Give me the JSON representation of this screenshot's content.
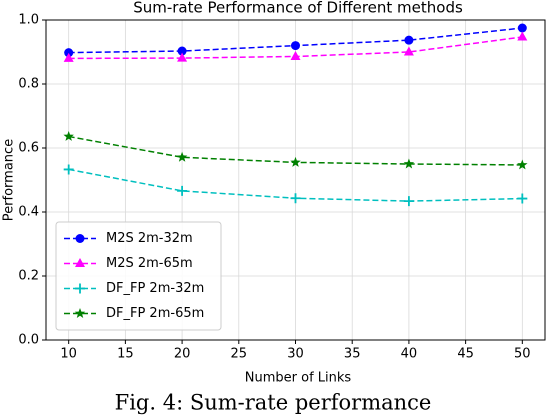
{
  "chart_data": {
    "type": "line",
    "title": "Sum-rate Performance of Different methods",
    "xlabel": "Number of Links",
    "ylabel": "Performance",
    "x": [
      10,
      20,
      30,
      40,
      50
    ],
    "series": [
      {
        "name": "M2S 2m-32m",
        "color": "#0000ff",
        "marker": "circle",
        "values": [
          0.898,
          0.903,
          0.92,
          0.937,
          0.975
        ]
      },
      {
        "name": "M2S 2m-65m",
        "color": "#ff00ff",
        "marker": "triangle",
        "values": [
          0.88,
          0.881,
          0.886,
          0.9,
          0.947
        ]
      },
      {
        "name": "DF_FP 2m-32m",
        "color": "#00bfbf",
        "marker": "plus",
        "values": [
          0.533,
          0.466,
          0.443,
          0.434,
          0.442
        ]
      },
      {
        "name": "DF_FP 2m-65m",
        "color": "#008000",
        "marker": "star",
        "values": [
          0.636,
          0.571,
          0.555,
          0.55,
          0.547
        ]
      }
    ],
    "xlim": [
      8,
      52
    ],
    "ylim": [
      0,
      1
    ],
    "xticks": [
      10,
      15,
      20,
      25,
      30,
      35,
      40,
      45,
      50
    ],
    "yticks": [
      {
        "value": 0,
        "label": "0.0"
      },
      0.2,
      0.4,
      0.6,
      0.8,
      {
        "value": 1,
        "label": "1.0"
      }
    ],
    "grid": true,
    "legend": "lower left"
  },
  "caption": "Fig. 4: Sum-rate performance"
}
